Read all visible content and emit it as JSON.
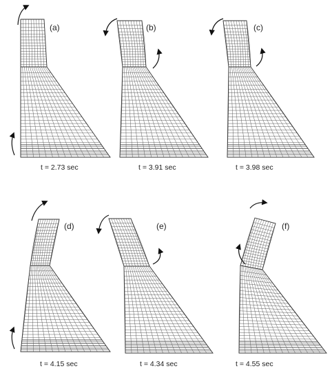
{
  "figure": {
    "panels": [
      {
        "letter": "(a)",
        "time": "t = 2.73 sec"
      },
      {
        "letter": "(b)",
        "time": "t = 3.91 sec"
      },
      {
        "letter": "(c)",
        "time": "t = 3.98  sec"
      },
      {
        "letter": "(d)",
        "time": "t = 4.15 sec"
      },
      {
        "letter": "(e)",
        "time": "t = 4.34 sec"
      },
      {
        "letter": "(f)",
        "time": "t = 4.55  sec"
      }
    ],
    "colors": {
      "mesh": "#4d4d4d",
      "outline": "#333333",
      "arrow": "#111111"
    }
  }
}
